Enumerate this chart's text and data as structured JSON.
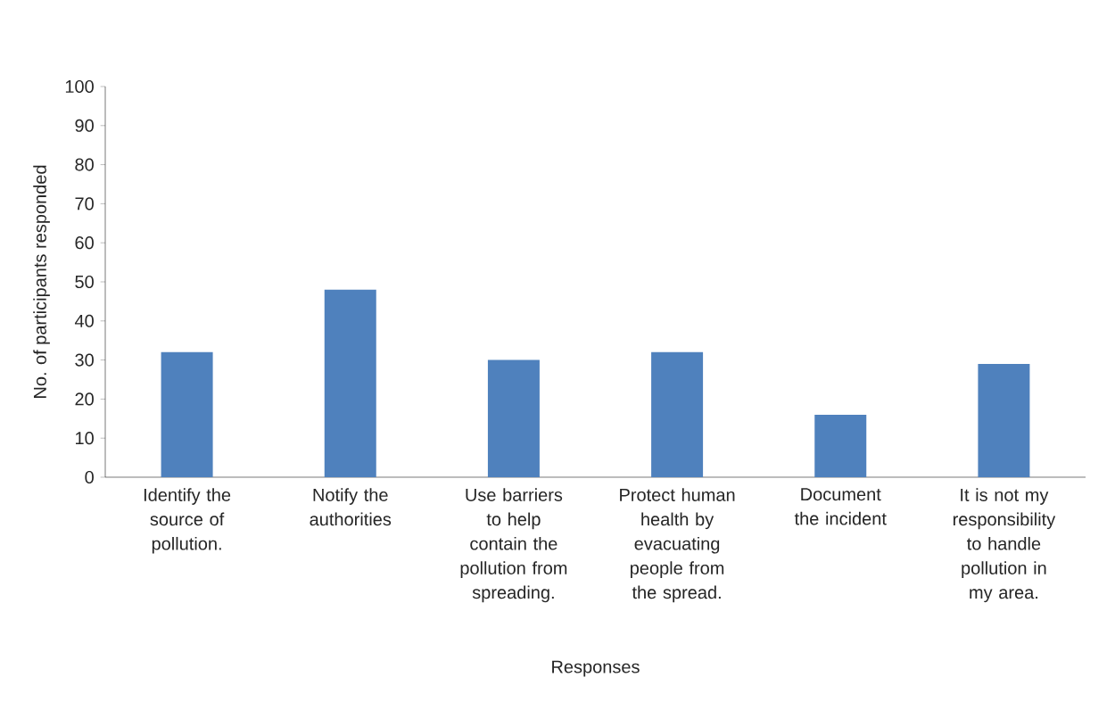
{
  "chart_data": {
    "type": "bar",
    "xlabel": "Responses",
    "ylabel": "No. of participants responded",
    "categories": [
      "Identify the source of pollution.",
      "Notify the authorities",
      "Use barriers to help contain the pollution from spreading.",
      "Protect human health by evacuating people from the spread.",
      "Document the incident",
      "It is not my responsibility to handle pollution in my area."
    ],
    "values": [
      32,
      48,
      30,
      32,
      16,
      29
    ],
    "color": "#4f81bd",
    "ylim": [
      0,
      100
    ],
    "yticks": [
      0,
      10,
      20,
      30,
      40,
      50,
      60,
      70,
      80,
      90,
      100
    ]
  }
}
